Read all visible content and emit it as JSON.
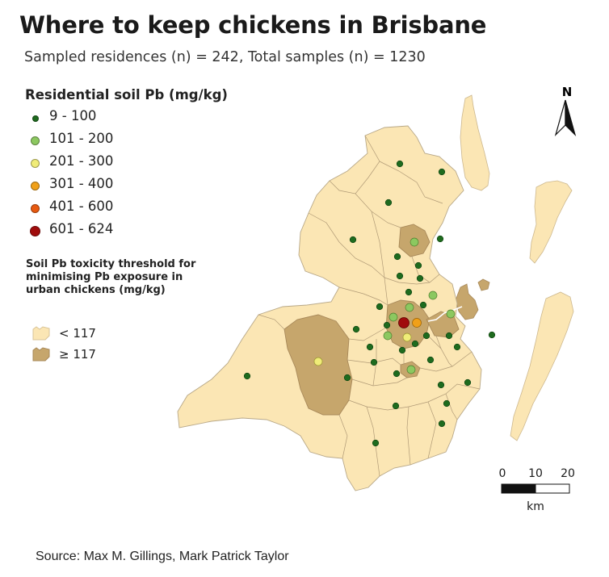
{
  "title": "Where to keep chickens in Brisbane",
  "subtitle": "Sampled residences (n) = 242, Total samples (n) = 1230",
  "legend": {
    "title": "Residential soil Pb (mg/kg)",
    "items": [
      {
        "label": "9 - 100",
        "color": "#1e6b1e",
        "size": "small"
      },
      {
        "label": "101 - 200",
        "color": "#8cc860",
        "size": "medium"
      },
      {
        "label": "201 - 300",
        "color": "#f0ec78",
        "size": "medium"
      },
      {
        "label": "301 - 400",
        "color": "#f0a018",
        "size": "medium"
      },
      {
        "label": "401 - 600",
        "color": "#e85a10",
        "size": "medium"
      },
      {
        "label": "601 - 624",
        "color": "#a00c0c",
        "size": "large"
      }
    ]
  },
  "threshold": {
    "title": "Soil Pb toxicity threshold for minimising Pb exposure in urban chickens (mg/kg)",
    "below": {
      "label": "< 117",
      "color": "#fbe6b4"
    },
    "above": {
      "label": "≥ 117",
      "color": "#c6a66c"
    }
  },
  "north_arrow": {
    "label": "N",
    "icon": "north-arrow-icon"
  },
  "scale_bar": {
    "ticks": [
      "0",
      "10",
      "20"
    ],
    "unit": "km"
  },
  "source": "Source: Max M. Gillings, Mark Patrick Taylor",
  "colors": {
    "land": "#fbe6b4",
    "land_high": "#c6a66c",
    "boundary": "#a89a80"
  }
}
